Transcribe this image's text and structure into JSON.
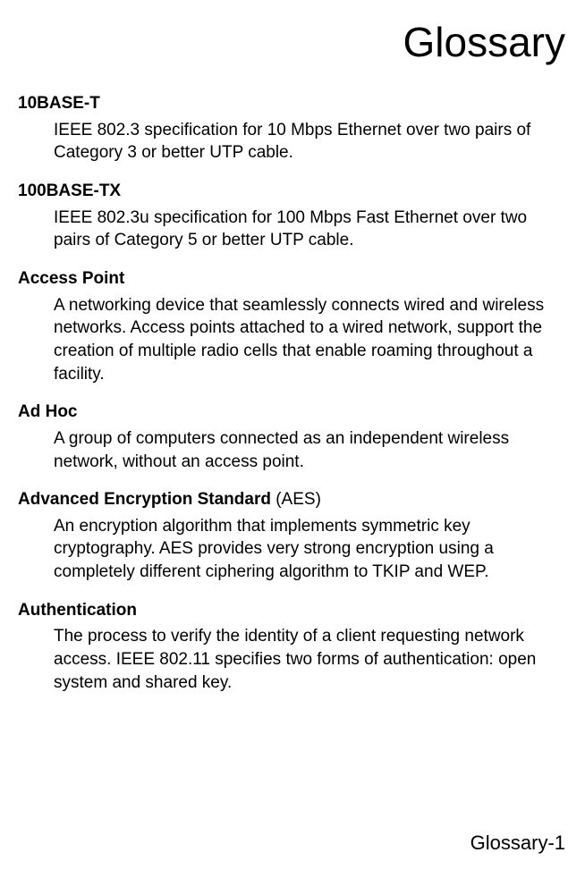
{
  "title": "Glossary",
  "entries": [
    {
      "term": "10BASE-T",
      "suffix": "",
      "definition": "IEEE 802.3 specification for 10 Mbps Ethernet over two pairs of Category 3 or better UTP cable."
    },
    {
      "term": "100BASE-TX",
      "suffix": "",
      "definition": "IEEE 802.3u specification for 100 Mbps Fast Ethernet over two pairs of Category 5 or better UTP cable."
    },
    {
      "term": "Access Point",
      "suffix": "",
      "definition": "A networking device that seamlessly connects wired and wireless networks. Access points attached to a wired network, support the creation of multiple radio cells that enable roaming throughout a facility."
    },
    {
      "term": "Ad Hoc",
      "suffix": "",
      "definition": "A group of computers connected as an independent wireless network, without an access point."
    },
    {
      "term": "Advanced Encryption Standard",
      "suffix": " (AES)",
      "definition": "An encryption algorithm that implements symmetric key cryptography. AES provides very strong encryption using a completely different ciphering algorithm to TKIP and WEP."
    },
    {
      "term": "Authentication",
      "suffix": "",
      "definition": "The process to verify the identity of a client requesting network access. IEEE 802.11 specifies two forms of authentication: open system and shared key."
    }
  ],
  "pageNumber": "Glossary-1",
  "styling": {
    "background_color": "#ffffff",
    "text_color": "#000000",
    "title_fontsize": 46,
    "term_fontsize": 19,
    "definition_fontsize": 19,
    "page_number_fontsize": 22,
    "font_family": "Arial, Helvetica, sans-serif"
  }
}
